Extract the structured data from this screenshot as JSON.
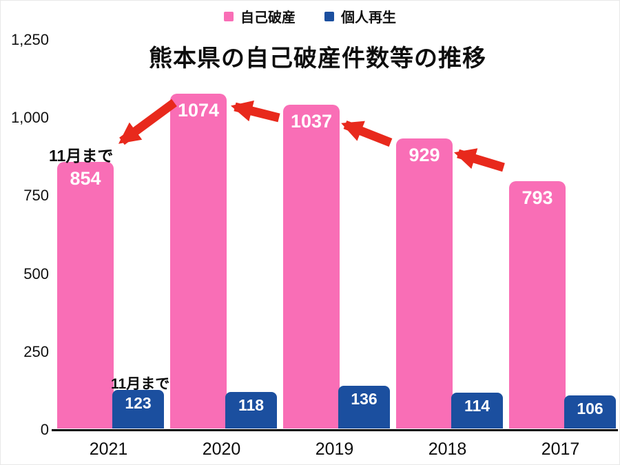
{
  "chart_data": {
    "type": "bar",
    "title": "熊本県の自己破産件数等の推移",
    "categories": [
      "2021",
      "2020",
      "2019",
      "2018",
      "2017"
    ],
    "series": [
      {
        "name": "自己破産",
        "color": "#F96EB6",
        "values": [
          854,
          1074,
          1037,
          929,
          793
        ]
      },
      {
        "name": "個人再生",
        "color": "#1B4F9F",
        "values": [
          123,
          118,
          136,
          114,
          106
        ]
      }
    ],
    "ylim": [
      0,
      1250
    ],
    "yticks": [
      {
        "label": "1,250",
        "value": 1250
      },
      {
        "label": "1,000",
        "value": 1000
      },
      {
        "label": "750",
        "value": 750
      },
      {
        "label": "500",
        "value": 500
      },
      {
        "label": "250",
        "value": 250
      },
      {
        "label": "0",
        "value": 0
      }
    ],
    "grid": false,
    "legend_position": "top",
    "annotations": [
      {
        "text": "11月まで"
      },
      {
        "text": "11月まで"
      }
    ],
    "arrow_color": "#E8291C"
  }
}
